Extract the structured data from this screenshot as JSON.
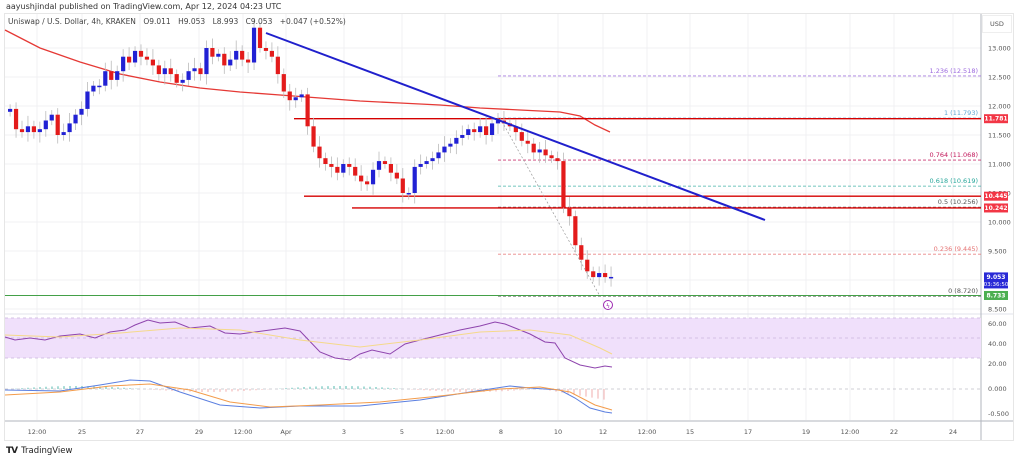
{
  "header": {
    "publisher": "aayushjindal published on TradingView.com, Apr 12, 2024 04:23 UTC"
  },
  "legend": {
    "symbol": "Uniswap / U.S. Dollar, 4h, KRAKEN",
    "open": "O9.011",
    "high": "H9.053",
    "low": "L8.993",
    "close": "C9.053",
    "change": "+0.047 (+0.52%)"
  },
  "price_axis": {
    "currency": "USD",
    "ticks": [
      "13.000",
      "12.500",
      "12.000",
      "11.500",
      "11.000",
      "10.500",
      "10.000",
      "9.500",
      "9.000",
      "8.500"
    ],
    "badges": [
      {
        "value": "11.781",
        "color": "#f23645"
      },
      {
        "value": "10.445",
        "color": "#f23645"
      },
      {
        "value": "10.242",
        "color": "#f23645"
      },
      {
        "value": "9.053",
        "sub": "03:36:50",
        "color": "#2929d6"
      },
      {
        "value": "8.733",
        "color": "#4caf50"
      }
    ]
  },
  "oscillator_axis": {
    "rsi_ticks": [
      "60.00",
      "40.00",
      "20.00"
    ],
    "macd_ticks": [
      "0.000",
      "-0.500"
    ]
  },
  "time_axis": {
    "ticks": [
      "12:00",
      "25",
      "27",
      "29",
      "12:00",
      "Apr",
      "3",
      "5",
      "12:00",
      "8",
      "10",
      "12",
      "12:00",
      "15",
      "17",
      "19",
      "12:00",
      "22",
      "24"
    ]
  },
  "fibonacci": [
    {
      "label": "1.236 (12.518)",
      "color": "#9c6ade"
    },
    {
      "label": "1 (11.793)",
      "color": "#5fa8d3"
    },
    {
      "label": "0.764 (11.068)",
      "color": "#c2185b"
    },
    {
      "label": "0.618 (10.619)",
      "color": "#26a69a"
    },
    {
      "label": "0.5 (10.256)",
      "color": "#555555"
    },
    {
      "label": "0.236 (9.445)",
      "color": "#e57373"
    },
    {
      "label": "0 (8.720)",
      "color": "#555555"
    }
  ],
  "footer": {
    "brand": "TradingView"
  },
  "colors": {
    "up": "#2121d4",
    "down": "#e31b1b",
    "trendline": "#2020cc",
    "ma": "#e53935",
    "resistance": "#d50000",
    "support": "#43a047",
    "rsi_band": "#f0e0fb",
    "rsi_line": "#8e44ad",
    "rsi_ma": "#f5d98a",
    "macd": "#5b7fe0",
    "signal": "#f39c4b"
  },
  "chart_data": {
    "type": "candlestick",
    "title": "Uniswap / U.S. Dollar, 4h, KRAKEN",
    "xlabel": "",
    "ylabel": "USD",
    "ylim": [
      8.4,
      13.4
    ],
    "x_ticks": [
      "12:00",
      "25",
      "27",
      "29",
      "12:00",
      "Apr",
      "3",
      "5",
      "12:00",
      "8",
      "10",
      "12",
      "12:00",
      "15",
      "17",
      "19",
      "12:00",
      "22",
      "24"
    ],
    "ohlc_summary": {
      "open": 9.011,
      "high": 9.053,
      "low": 8.993,
      "close": 9.053,
      "change": 0.047,
      "change_pct": 0.52
    },
    "last_price": 9.053,
    "horizontal_levels": {
      "resistance": [
        11.781,
        10.445,
        10.242
      ],
      "support": [
        8.733
      ]
    },
    "fib_retracement": [
      {
        "ratio": 1.236,
        "price": 12.518
      },
      {
        "ratio": 1.0,
        "price": 11.793
      },
      {
        "ratio": 0.764,
        "price": 11.068
      },
      {
        "ratio": 0.618,
        "price": 10.619
      },
      {
        "ratio": 0.5,
        "price": 10.256
      },
      {
        "ratio": 0.236,
        "price": 9.445
      },
      {
        "ratio": 0,
        "price": 8.72
      }
    ],
    "trendline": {
      "from": {
        "x": "Mar 31",
        "price": 13.3
      },
      "to": {
        "x": "Apr 17",
        "price": 10.1
      },
      "type": "bearish"
    },
    "moving_average": "100 SMA (red), declining from ~13.1 to ~11.6",
    "closes_approx": [
      11.95,
      11.6,
      11.55,
      11.65,
      11.55,
      11.6,
      11.75,
      11.85,
      11.5,
      11.55,
      11.7,
      11.85,
      11.95,
      12.25,
      12.35,
      12.35,
      12.6,
      12.45,
      12.6,
      12.85,
      12.75,
      12.95,
      12.85,
      12.8,
      12.7,
      12.55,
      12.65,
      12.55,
      12.4,
      12.45,
      12.6,
      12.65,
      12.55,
      13.0,
      12.85,
      12.9,
      12.7,
      12.8,
      12.95,
      12.8,
      12.75,
      13.35,
      13.0,
      12.95,
      12.85,
      12.55,
      12.25,
      12.1,
      12.15,
      12.2,
      11.65,
      11.3,
      11.1,
      11.0,
      10.95,
      10.85,
      11.0,
      10.95,
      10.8,
      10.7,
      10.65,
      10.9,
      11.05,
      11.0,
      10.85,
      10.75,
      10.5,
      10.5,
      10.95,
      11.0,
      11.05,
      11.1,
      11.2,
      11.3,
      11.35,
      11.45,
      11.5,
      11.6,
      11.55,
      11.65,
      11.5,
      11.7,
      11.75,
      11.7,
      11.65,
      11.55,
      11.4,
      11.35,
      11.2,
      11.25,
      11.15,
      11.1,
      11.05,
      10.25,
      10.1,
      9.6,
      9.35,
      9.15,
      9.05,
      9.12,
      9.05,
      9.053
    ],
    "rsi": {
      "levels": [
        70,
        50,
        30
      ],
      "last": 21
    },
    "macd": {
      "last_macd": -0.55,
      "last_signal": -0.42
    }
  }
}
